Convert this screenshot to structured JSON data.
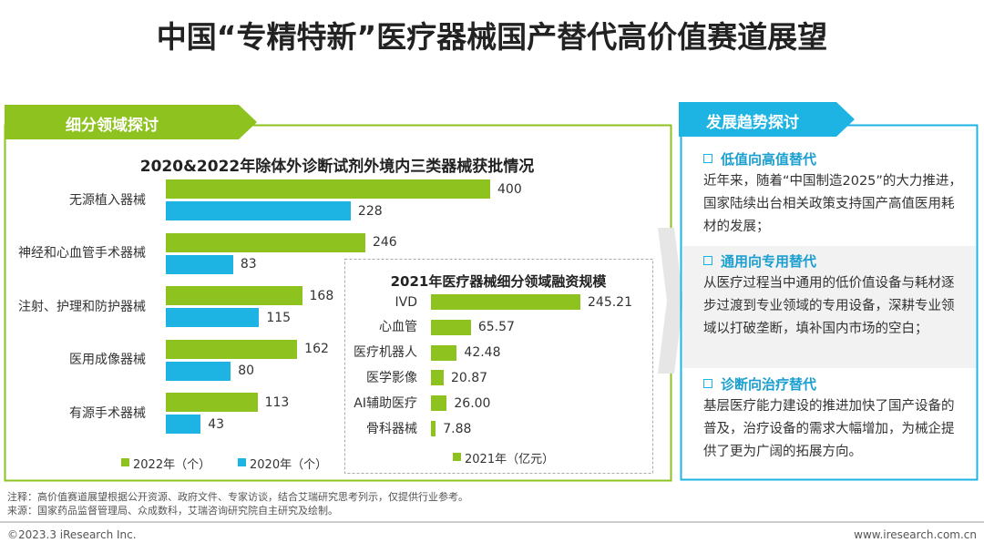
{
  "title": "中国“专精特新”医疗器械国产替代高价值赛道展望",
  "left_panel": {
    "heading": "细分领域探讨"
  },
  "chart_data": [
    {
      "type": "bar",
      "orientation": "horizontal",
      "title": "2020&2022年除体外诊断试剂外境内三类器械获批情况",
      "categories": [
        "无源植入器械",
        "神经和心血管手术器械",
        "注射、护理和防护器械",
        "医用成像器械",
        "有源手术器械"
      ],
      "series": [
        {
          "name": "2022年（个）",
          "color": "#8dc21f",
          "values": [
            400,
            246,
            168,
            162,
            113
          ]
        },
        {
          "name": "2020年（个）",
          "color": "#1db4e4",
          "values": [
            228,
            83,
            115,
            80,
            43
          ]
        }
      ]
    },
    {
      "type": "bar",
      "orientation": "horizontal",
      "title": "2021年医疗器械细分领域融资规模",
      "categories": [
        "IVD",
        "心血管",
        "医疗机器人",
        "医学影像",
        "AI辅助医疗",
        "骨科器械"
      ],
      "series": [
        {
          "name": "2021年（亿元）",
          "color": "#8dc21f",
          "values": [
            245.21,
            65.57,
            42.48,
            20.87,
            26.0,
            7.88
          ],
          "value_labels": [
            "245.21",
            "65.57",
            "42.48",
            "20.87",
            "26.00",
            "7.88"
          ]
        }
      ]
    }
  ],
  "right_panel": {
    "heading": "发展趋势探讨",
    "items": [
      {
        "heading": "低值向高值替代",
        "body": "近年来，随着“中国制造2025”的大力推进，国家陆续出台相关政策支持国产高值医用耗材的发展；"
      },
      {
        "heading": "通用向专用替代",
        "body": "从医疗过程当中通用的低价值设备与耗材逐步过渡到专业领域的专用设备，深耕专业领域以打破垄断，填补国内市场的空白；"
      },
      {
        "heading": "诊断向治疗替代",
        "body": "基层医疗能力建设的推进加快了国产设备的普及，治疗设备的需求大幅增加，为械企提供了更为广阔的拓展方向。"
      }
    ]
  },
  "footer": {
    "note": "注释：高价值赛道展望根据公开资源、政府文件、专家访谈，结合艾瑞研究思考列示，仅提供行业参考。",
    "source": "来源：国家药品监督管理局、众成数科，艾瑞咨询研究院自主研究及绘制。",
    "copyright": "©2023.3 iResearch Inc.",
    "website": "www.iresearch.com.cn"
  }
}
